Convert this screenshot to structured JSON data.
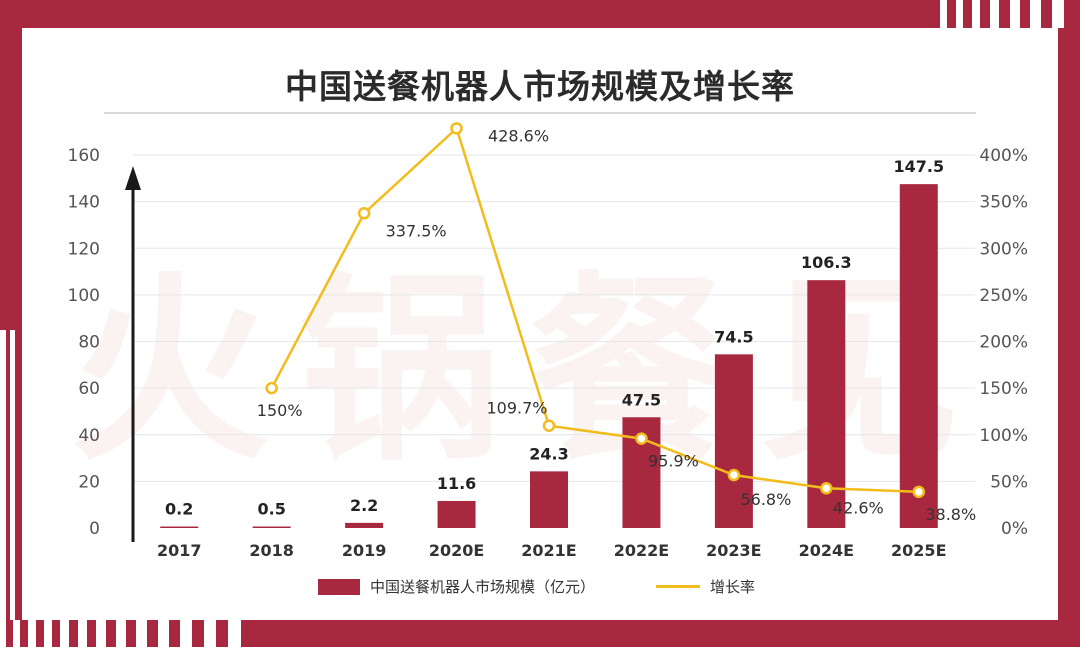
{
  "colors": {
    "bar": "#a8283f",
    "line": "#f2bd1c",
    "frame": "#a8283f"
  },
  "title": "中国送餐机器人市场规模及增长率",
  "watermark": "火锅餐见",
  "legend": {
    "bar_label": "中国送餐机器人市场规模（亿元）",
    "line_label": "增长率"
  },
  "chart_data": {
    "type": "bar",
    "title": "中国送餐机器人市场规模及增长率",
    "categories": [
      "2017",
      "2018",
      "2019",
      "2020E",
      "2021E",
      "2022E",
      "2023E",
      "2024E",
      "2025E"
    ],
    "series": [
      {
        "name": "中国送餐机器人市场规模（亿元）",
        "type": "bar",
        "axis": "left",
        "values": [
          0.2,
          0.5,
          2.2,
          11.6,
          24.3,
          47.5,
          74.5,
          106.3,
          147.5
        ],
        "labels": [
          "0.2",
          "0.5",
          "2.2",
          "11.6",
          "24.3",
          "47.5",
          "74.5",
          "106.3",
          "147.5"
        ]
      },
      {
        "name": "增长率",
        "type": "line",
        "axis": "right",
        "values": [
          null,
          150,
          337.5,
          428.6,
          109.7,
          95.9,
          56.8,
          42.6,
          38.8
        ],
        "labels": [
          "",
          "150%",
          "337.5%",
          "428.6%",
          "109.7%",
          "95.9%",
          "56.8%",
          "42.6%",
          "38.8%"
        ]
      }
    ],
    "y_left": {
      "min": 0,
      "max": 160,
      "ticks": [
        "0",
        "20",
        "40",
        "60",
        "80",
        "100",
        "120",
        "140",
        "160"
      ]
    },
    "y_right": {
      "min": 0,
      "max": 400,
      "ticks": [
        "0%",
        "50%",
        "100%",
        "150%",
        "200%",
        "250%",
        "300%",
        "350%",
        "400%"
      ]
    },
    "grid": true,
    "legend_position": "bottom"
  }
}
